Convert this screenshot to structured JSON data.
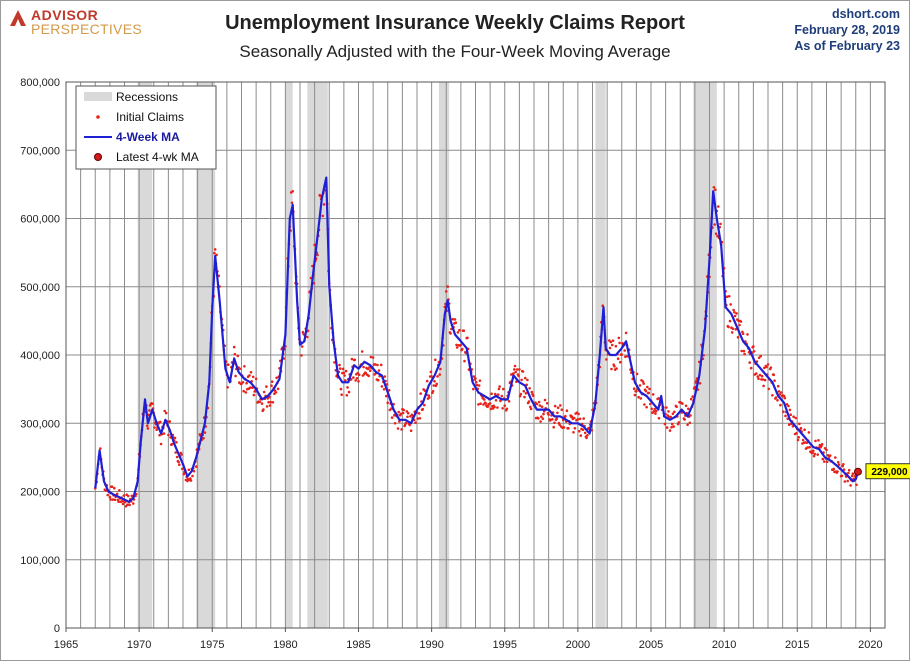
{
  "header": {
    "logo_line1": "ADVISOR",
    "logo_line2": "PERSPECTIVES",
    "source": "dshort.com",
    "date": "February 28, 2019",
    "as_of": "As of February 23"
  },
  "colors": {
    "ma_line": "#1f1fd6",
    "claims_dots": "#e8231b",
    "recession_band": "#d9d9d9",
    "grid": "#8c8c8c",
    "label_box": "#ffff00"
  },
  "chart_data": {
    "type": "line",
    "title": "Unemployment Insurance Weekly Claims Report",
    "subtitle": "Seasonally Adjusted with the Four-Week Moving Average",
    "xlim": [
      1965,
      2021
    ],
    "ylim": [
      0,
      800000
    ],
    "x_ticks": [
      1965,
      1970,
      1975,
      1980,
      1985,
      1990,
      1995,
      2000,
      2005,
      2010,
      2015,
      2020
    ],
    "y_ticks": [
      0,
      100000,
      200000,
      300000,
      400000,
      500000,
      600000,
      700000,
      800000
    ],
    "y_tick_labels": [
      "0",
      "100,000",
      "200,000",
      "300,000",
      "400,000",
      "500,000",
      "600,000",
      "700,000",
      "800,000"
    ],
    "grid": true,
    "legend_position": "top-left",
    "legend": [
      "Recessions",
      "Initial Claims",
      "4-Week MA",
      "Latest 4-wk MA"
    ],
    "recessions": [
      [
        1969.9,
        1970.9
      ],
      [
        1973.9,
        1975.2
      ],
      [
        1980.0,
        1980.5
      ],
      [
        1981.5,
        1982.9
      ],
      [
        1990.5,
        1991.2
      ],
      [
        2001.2,
        2001.9
      ],
      [
        2007.9,
        2009.5
      ]
    ],
    "series": [
      {
        "name": "4-Week MA",
        "x": [
          1967.0,
          1967.3,
          1967.6,
          1967.9,
          1968.3,
          1968.8,
          1969.3,
          1969.6,
          1969.9,
          1970.1,
          1970.4,
          1970.6,
          1970.9,
          1971.2,
          1971.5,
          1971.8,
          1972.1,
          1972.4,
          1972.7,
          1973.0,
          1973.3,
          1973.6,
          1973.9,
          1974.2,
          1974.5,
          1974.8,
          1975.0,
          1975.2,
          1975.5,
          1975.9,
          1976.2,
          1976.5,
          1976.8,
          1977.2,
          1977.6,
          1978.0,
          1978.4,
          1978.8,
          1979.2,
          1979.6,
          1980.0,
          1980.3,
          1980.5,
          1980.8,
          1981.0,
          1981.3,
          1981.6,
          1981.9,
          1982.2,
          1982.5,
          1982.8,
          1983.0,
          1983.3,
          1983.6,
          1983.9,
          1984.3,
          1984.7,
          1985.0,
          1985.4,
          1985.8,
          1986.2,
          1986.6,
          1987.0,
          1987.4,
          1987.8,
          1988.2,
          1988.6,
          1989.0,
          1989.4,
          1989.8,
          1990.2,
          1990.6,
          1990.9,
          1991.1,
          1991.3,
          1991.6,
          1992.0,
          1992.4,
          1992.8,
          1993.2,
          1993.6,
          1994.0,
          1994.4,
          1994.8,
          1995.2,
          1995.6,
          1996.0,
          1996.4,
          1996.8,
          1997.2,
          1997.6,
          1998.0,
          1998.4,
          1998.8,
          1999.2,
          1999.6,
          2000.0,
          2000.4,
          2000.8,
          2001.2,
          2001.5,
          2001.75,
          2001.9,
          2002.2,
          2002.6,
          2003.0,
          2003.3,
          2003.6,
          2003.9,
          2004.3,
          2004.7,
          2005.1,
          2005.5,
          2005.7,
          2005.9,
          2006.3,
          2006.7,
          2007.1,
          2007.5,
          2007.9,
          2008.3,
          2008.7,
          2009.0,
          2009.25,
          2009.5,
          2009.8,
          2010.1,
          2010.5,
          2010.9,
          2011.3,
          2011.7,
          2012.1,
          2012.5,
          2012.9,
          2013.3,
          2013.7,
          2014.1,
          2014.5,
          2014.9,
          2015.3,
          2015.7,
          2016.1,
          2016.5,
          2016.9,
          2017.3,
          2017.7,
          2018.1,
          2018.5,
          2018.8,
          2019.0,
          2019.15
        ],
        "values": [
          205000,
          260000,
          215000,
          200000,
          195000,
          190000,
          185000,
          190000,
          215000,
          270000,
          335000,
          300000,
          320000,
          300000,
          285000,
          305000,
          290000,
          270000,
          255000,
          240000,
          222000,
          230000,
          250000,
          275000,
          300000,
          360000,
          470000,
          545000,
          480000,
          380000,
          360000,
          395000,
          375000,
          365000,
          360000,
          350000,
          335000,
          340000,
          350000,
          365000,
          430000,
          600000,
          620000,
          480000,
          415000,
          420000,
          460000,
          520000,
          575000,
          630000,
          660000,
          500000,
          420000,
          370000,
          360000,
          360000,
          385000,
          380000,
          390000,
          385000,
          375000,
          370000,
          345000,
          320000,
          305000,
          305000,
          300000,
          320000,
          330000,
          355000,
          370000,
          390000,
          460000,
          480000,
          450000,
          430000,
          420000,
          410000,
          360000,
          345000,
          340000,
          335000,
          340000,
          335000,
          335000,
          370000,
          360000,
          355000,
          335000,
          320000,
          320000,
          320000,
          310000,
          310000,
          305000,
          300000,
          300000,
          295000,
          285000,
          330000,
          400000,
          470000,
          410000,
          400000,
          400000,
          410000,
          420000,
          390000,
          360000,
          345000,
          340000,
          330000,
          320000,
          340000,
          310000,
          305000,
          310000,
          320000,
          310000,
          330000,
          370000,
          440000,
          540000,
          640000,
          600000,
          560000,
          470000,
          460000,
          440000,
          420000,
          410000,
          390000,
          380000,
          370000,
          360000,
          340000,
          330000,
          305000,
          295000,
          285000,
          275000,
          265000,
          262000,
          250000,
          245000,
          238000,
          230000,
          222000,
          215000,
          218000,
          229000
        ]
      },
      {
        "name": "Initial Claims"
      }
    ],
    "latest": {
      "x": 2019.15,
      "value": 229000,
      "label": "229,000"
    }
  }
}
